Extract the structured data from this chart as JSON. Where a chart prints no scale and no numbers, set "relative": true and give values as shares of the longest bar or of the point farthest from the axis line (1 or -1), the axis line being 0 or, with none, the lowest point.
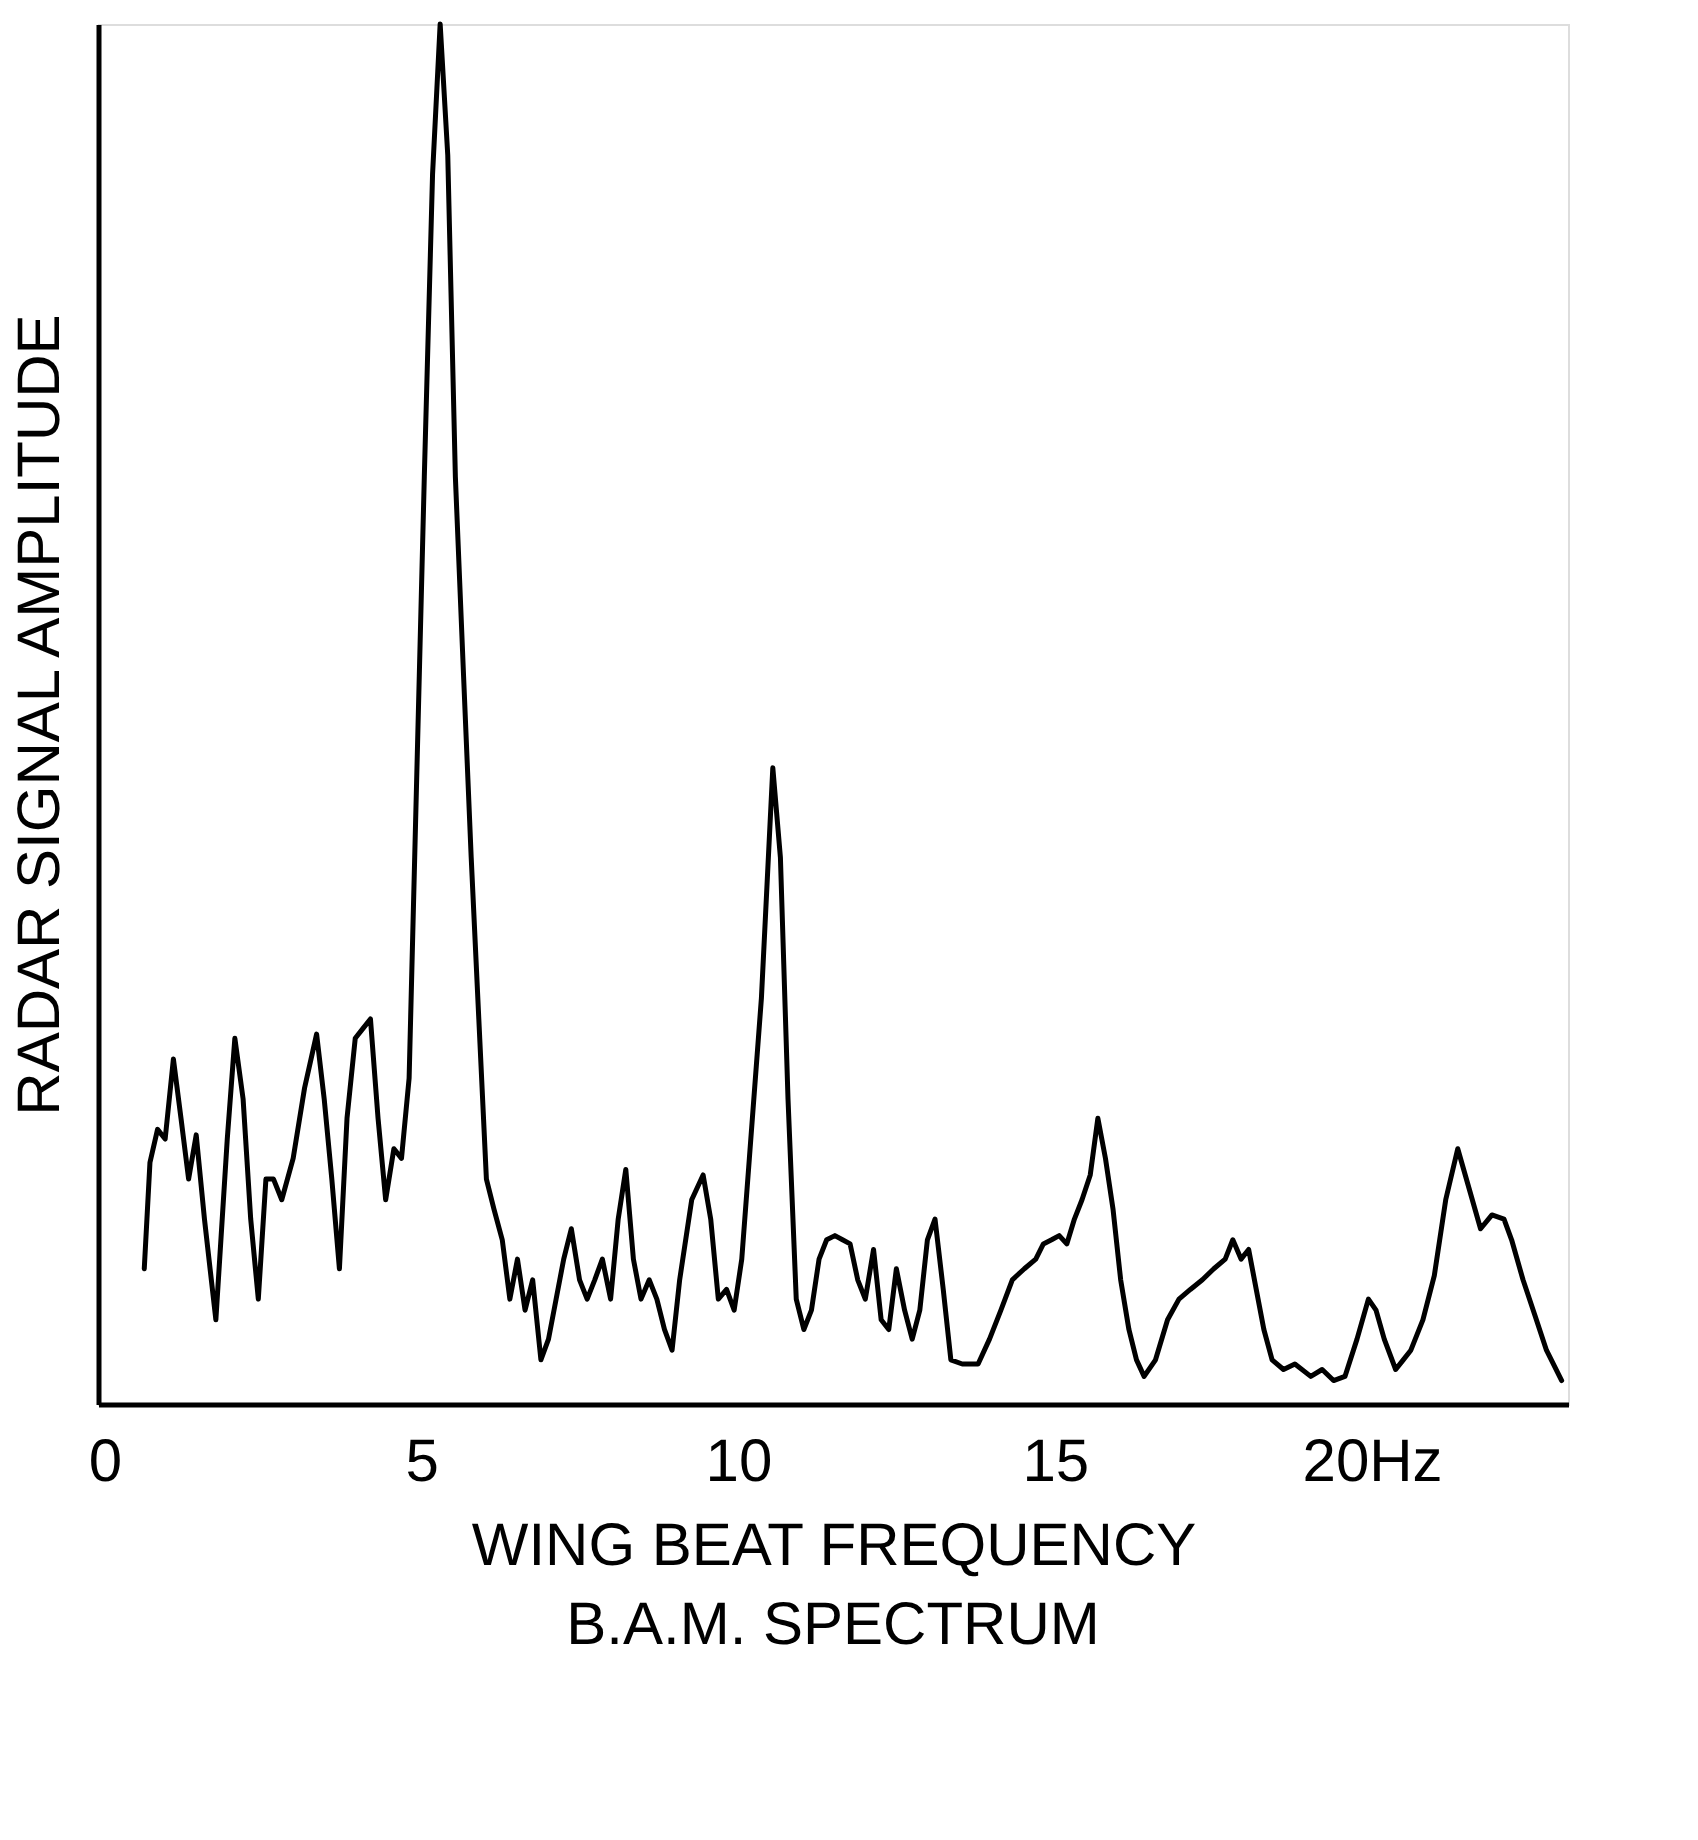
{
  "chart_data": {
    "type": "line",
    "relative": true,
    "xlabel": "WING BEAT FREQUENCY",
    "ylabel": "RADAR SIGNAL AMPLITUDE",
    "annotations": [
      "B.A.M. SPECTRUM"
    ],
    "xlim": [
      -0.1,
      23.1
    ],
    "xticks": [
      0,
      5,
      10,
      15,
      {
        "value": 20,
        "label": "20Hz"
      }
    ],
    "grid": false,
    "series": [
      {
        "color": "#000000",
        "x": [
          0.63,
          0.72,
          0.84,
          0.96,
          1.09,
          1.21,
          1.33,
          1.45,
          1.58,
          1.76,
          1.94,
          2.06,
          2.19,
          2.31,
          2.43,
          2.55,
          2.67,
          2.8,
          2.98,
          3.16,
          3.35,
          3.47,
          3.59,
          3.71,
          3.83,
          3.96,
          4.08,
          4.2,
          4.32,
          4.44,
          4.57,
          4.69,
          4.81,
          4.93,
          5.05,
          5.18,
          5.3,
          5.42,
          5.54,
          5.67,
          5.79,
          5.91,
          6.03,
          6.15,
          6.28,
          6.4,
          6.52,
          6.64,
          6.76,
          6.89,
          7.01,
          7.13,
          7.25,
          7.37,
          7.5,
          7.62,
          7.74,
          7.86,
          7.99,
          8.11,
          8.23,
          8.35,
          8.47,
          8.6,
          8.72,
          8.84,
          8.96,
          9.08,
          9.27,
          9.45,
          9.57,
          9.69,
          9.82,
          9.94,
          10.06,
          10.18,
          10.37,
          10.55,
          10.67,
          10.79,
          10.92,
          11.04,
          11.16,
          11.28,
          11.4,
          11.53,
          11.65,
          11.77,
          11.89,
          12.01,
          12.14,
          12.26,
          12.38,
          12.5,
          12.63,
          12.75,
          12.87,
          12.99,
          13.11,
          13.24,
          13.36,
          13.54,
          13.79,
          13.97,
          14.15,
          14.33,
          14.52,
          14.7,
          14.82,
          14.95,
          15.07,
          15.19,
          15.31,
          15.43,
          15.56,
          15.68,
          15.8,
          15.92,
          16.04,
          16.17,
          16.29,
          16.41,
          16.59,
          16.78,
          16.96,
          17.14,
          17.33,
          17.51,
          17.69,
          17.81,
          17.94,
          18.06,
          18.18,
          18.3,
          18.43,
          18.61,
          18.79,
          19.04,
          19.22,
          19.4,
          19.58,
          19.77,
          19.95,
          20.07,
          20.2,
          20.38,
          20.5,
          20.62,
          20.81,
          20.99,
          21.17,
          21.36,
          21.54,
          21.72,
          21.9,
          22.09,
          22.21,
          22.39,
          22.58,
          22.76,
          23.0
        ],
        "values": [
          0.098,
          0.175,
          0.199,
          0.192,
          0.25,
          0.207,
          0.163,
          0.195,
          0.134,
          0.061,
          0.192,
          0.265,
          0.221,
          0.134,
          0.076,
          0.163,
          0.163,
          0.148,
          0.178,
          0.229,
          0.268,
          0.221,
          0.163,
          0.098,
          0.207,
          0.265,
          0.272,
          0.279,
          0.207,
          0.148,
          0.185,
          0.178,
          0.236,
          0.454,
          0.672,
          0.891,
          1,
          0.905,
          0.672,
          0.527,
          0.396,
          0.279,
          0.163,
          0.141,
          0.119,
          0.076,
          0.105,
          0.068,
          0.09,
          0.032,
          0.047,
          0.076,
          0.105,
          0.127,
          0.09,
          0.076,
          0.09,
          0.105,
          0.076,
          0.134,
          0.17,
          0.105,
          0.076,
          0.09,
          0.076,
          0.054,
          0.039,
          0.09,
          0.148,
          0.166,
          0.134,
          0.076,
          0.083,
          0.068,
          0.105,
          0.178,
          0.294,
          0.461,
          0.396,
          0.221,
          0.076,
          0.054,
          0.068,
          0.105,
          0.119,
          0.122,
          0.119,
          0.116,
          0.09,
          0.076,
          0.112,
          0.061,
          0.054,
          0.098,
          0.068,
          0.047,
          0.068,
          0.119,
          0.134,
          0.083,
          0.032,
          0.029,
          0.029,
          0.047,
          0.068,
          0.09,
          0.098,
          0.105,
          0.116,
          0.119,
          0.122,
          0.116,
          0.134,
          0.148,
          0.166,
          0.207,
          0.178,
          0.141,
          0.09,
          0.054,
          0.032,
          0.02,
          0.032,
          0.061,
          0.076,
          0.083,
          0.09,
          0.098,
          0.105,
          0.119,
          0.105,
          0.112,
          0.083,
          0.054,
          0.032,
          0.025,
          0.029,
          0.02,
          0.025,
          0.017,
          0.02,
          0.047,
          0.076,
          0.068,
          0.047,
          0.025,
          0.032,
          0.039,
          0.061,
          0.093,
          0.148,
          0.185,
          0.156,
          0.127,
          0.137,
          0.134,
          0.119,
          0.09,
          0.064,
          0.039,
          0.017
        ]
      }
    ]
  }
}
